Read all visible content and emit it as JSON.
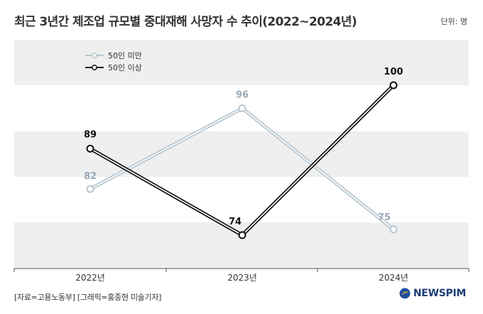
{
  "title": "최근 3년간 제조업 규모별 중대재해 사망자 수 추이(2022~2024년)",
  "unit": "단위: 명",
  "source": "[자료=고용노동부] [그래픽=홍종현 미술기자]",
  "brand": "NEWSPIM",
  "colors": {
    "band": "#efefef",
    "series_small": "#b7c6d0",
    "series_small_label": "#9aa9b6",
    "series_large": "#111111"
  },
  "chart_data": {
    "type": "line",
    "categories": [
      "2022년",
      "2023년",
      "2024년"
    ],
    "series": [
      {
        "name": "50인 미만",
        "values": [
          82,
          96,
          75
        ]
      },
      {
        "name": "50인 이상",
        "values": [
          89,
          74,
          100
        ]
      }
    ],
    "legend_position": "top-left",
    "grid": "horizontal-bands"
  }
}
